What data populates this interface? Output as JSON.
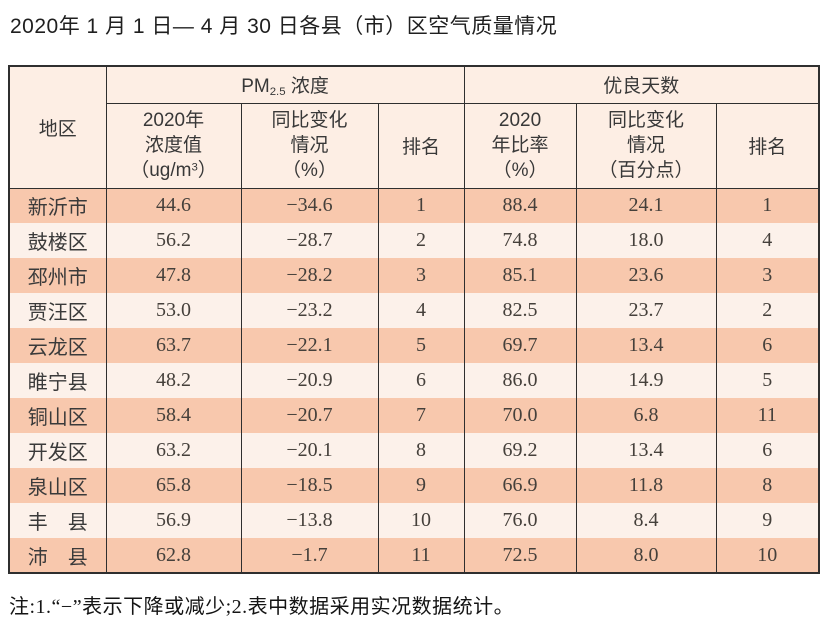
{
  "title": "2020年 1 月 1 日— 4 月 30 日各县（市）区空气质量情况",
  "table": {
    "region_header": "地区",
    "pm_group": {
      "prefix": "PM",
      "subscript": "2.5",
      "suffix": " 浓度"
    },
    "good_days_group": "优良天数",
    "sub_headers": {
      "pm_value": {
        "line1": "2020年",
        "line2": "浓度值",
        "line3_prefix": "（ug/m",
        "line3_sup": "3",
        "line3_suffix": "）"
      },
      "pm_change": {
        "line1": "同比变化",
        "line2": "情况",
        "line3": "（%）"
      },
      "pm_rank": "排名",
      "gd_ratio": {
        "line1": "2020",
        "line2": "年比率",
        "line3": "（%）"
      },
      "gd_change": {
        "line1": "同比变化",
        "line2": "情况",
        "line3": "（百分点）"
      },
      "gd_rank": "排名"
    },
    "rows": [
      {
        "region": "新沂市",
        "pm_value": "44.6",
        "pm_change": "−34.6",
        "pm_rank": "1",
        "gd_ratio": "88.4",
        "gd_change": "24.1",
        "gd_rank": "1"
      },
      {
        "region": "鼓楼区",
        "pm_value": "56.2",
        "pm_change": "−28.7",
        "pm_rank": "2",
        "gd_ratio": "74.8",
        "gd_change": "18.0",
        "gd_rank": "4"
      },
      {
        "region": "邳州市",
        "pm_value": "47.8",
        "pm_change": "−28.2",
        "pm_rank": "3",
        "gd_ratio": "85.1",
        "gd_change": "23.6",
        "gd_rank": "3"
      },
      {
        "region": "贾汪区",
        "pm_value": "53.0",
        "pm_change": "−23.2",
        "pm_rank": "4",
        "gd_ratio": "82.5",
        "gd_change": "23.7",
        "gd_rank": "2"
      },
      {
        "region": "云龙区",
        "pm_value": "63.7",
        "pm_change": "−22.1",
        "pm_rank": "5",
        "gd_ratio": "69.7",
        "gd_change": "13.4",
        "gd_rank": "6"
      },
      {
        "region": "睢宁县",
        "pm_value": "48.2",
        "pm_change": "−20.9",
        "pm_rank": "6",
        "gd_ratio": "86.0",
        "gd_change": "14.9",
        "gd_rank": "5"
      },
      {
        "region": "铜山区",
        "pm_value": "58.4",
        "pm_change": "−20.7",
        "pm_rank": "7",
        "gd_ratio": "70.0",
        "gd_change": "6.8",
        "gd_rank": "11"
      },
      {
        "region": "开发区",
        "pm_value": "63.2",
        "pm_change": "−20.1",
        "pm_rank": "8",
        "gd_ratio": "69.2",
        "gd_change": "13.4",
        "gd_rank": "6"
      },
      {
        "region": "泉山区",
        "pm_value": "65.8",
        "pm_change": "−18.5",
        "pm_rank": "9",
        "gd_ratio": "66.9",
        "gd_change": "11.8",
        "gd_rank": "8"
      },
      {
        "region": "丰　县",
        "pm_value": "56.9",
        "pm_change": "−13.8",
        "pm_rank": "10",
        "gd_ratio": "76.0",
        "gd_change": "8.4",
        "gd_rank": "9"
      },
      {
        "region": "沛　县",
        "pm_value": "62.8",
        "pm_change": "−1.7",
        "pm_rank": "11",
        "gd_ratio": "72.5",
        "gd_change": "8.0",
        "gd_rank": "10"
      }
    ]
  },
  "footnote": "注:1.“−”表示下降或减少;2.表中数据采用实况数据统计。",
  "colors": {
    "row_odd": "#f8c8ad",
    "row_even": "#fcf1ea",
    "header_bg": "#fdeee4",
    "grid_line": "#2f2f2f"
  }
}
